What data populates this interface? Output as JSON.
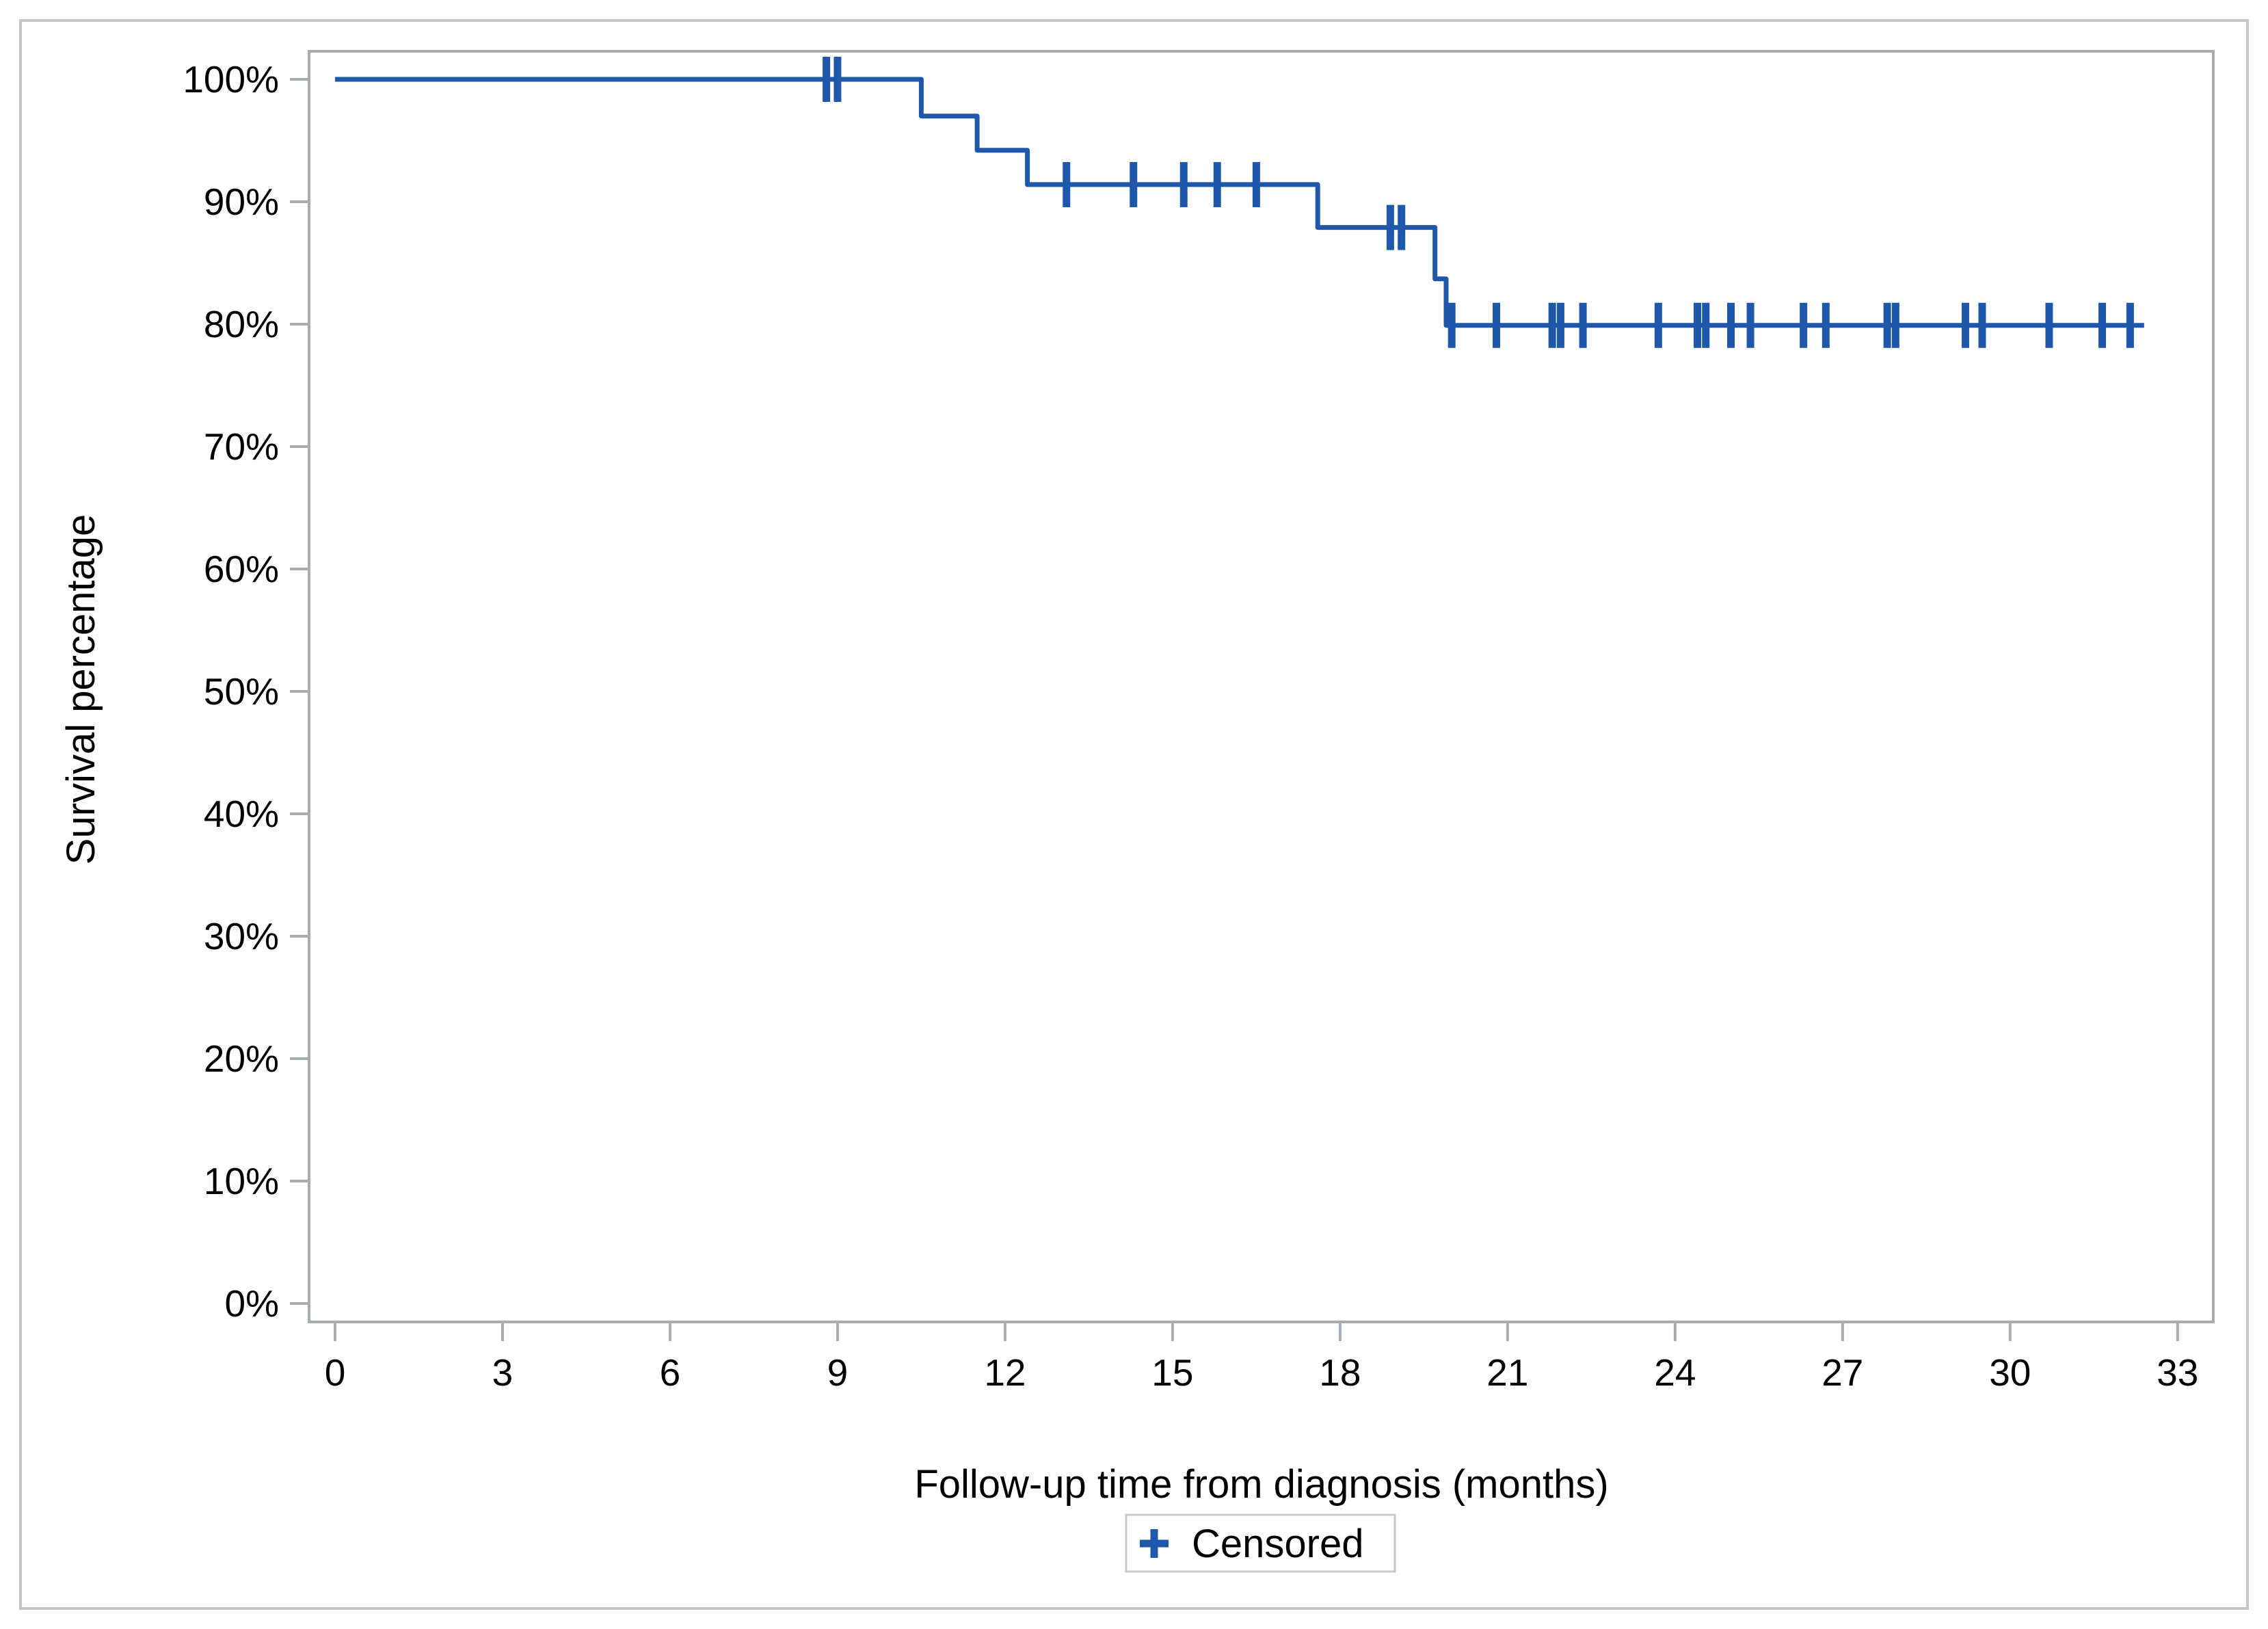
{
  "chart_data": {
    "type": "line",
    "subtype": "kaplan-meier-step-curve",
    "title": "",
    "xlabel": "Follow-up time from diagnosis (months)",
    "ylabel": "Survival percentage",
    "x_ticks": [
      0,
      3,
      6,
      9,
      12,
      15,
      18,
      21,
      24,
      27,
      30,
      33
    ],
    "y_ticks_percent": [
      100,
      90,
      80,
      70,
      60,
      50,
      40,
      30,
      20,
      10,
      0
    ],
    "y_tick_label_suffix": "%",
    "xlim": [
      -0.5,
      33.6
    ],
    "ylim": [
      -1.5,
      102.3
    ],
    "grid": false,
    "legend": {
      "label": "Censored",
      "marker": "plus-icon",
      "position": "bottom-center"
    },
    "series": [
      {
        "step_points": [
          [
            0,
            100
          ],
          [
            10.5,
            100
          ],
          [
            10.5,
            97.0
          ],
          [
            11.5,
            97.0
          ],
          [
            11.5,
            94.2
          ],
          [
            12.4,
            94.2
          ],
          [
            12.4,
            91.4
          ],
          [
            17.6,
            91.4
          ],
          [
            17.6,
            87.9
          ],
          [
            19.7,
            87.9
          ],
          [
            19.7,
            83.7
          ],
          [
            19.9,
            83.7
          ],
          [
            19.9,
            79.9
          ],
          [
            32.4,
            79.9
          ]
        ],
        "censored_points": [
          [
            8.8,
            100
          ],
          [
            9.0,
            100
          ],
          [
            13.1,
            91.4
          ],
          [
            14.3,
            91.4
          ],
          [
            15.2,
            91.4
          ],
          [
            15.8,
            91.4
          ],
          [
            16.5,
            91.4
          ],
          [
            18.9,
            87.9
          ],
          [
            19.1,
            87.9
          ],
          [
            20.0,
            79.9
          ],
          [
            20.8,
            79.9
          ],
          [
            21.8,
            79.9
          ],
          [
            21.95,
            79.9
          ],
          [
            22.35,
            79.9
          ],
          [
            23.7,
            79.9
          ],
          [
            24.4,
            79.9
          ],
          [
            24.55,
            79.9
          ],
          [
            25.0,
            79.9
          ],
          [
            25.35,
            79.9
          ],
          [
            26.3,
            79.9
          ],
          [
            26.7,
            79.9
          ],
          [
            27.8,
            79.9
          ],
          [
            27.95,
            79.9
          ],
          [
            29.2,
            79.9
          ],
          [
            29.5,
            79.9
          ],
          [
            30.7,
            79.9
          ],
          [
            31.65,
            79.9
          ],
          [
            32.15,
            79.9
          ]
        ]
      }
    ],
    "colors": {
      "curve": "#1f57ab",
      "axis": "#a6adb4",
      "text": "#000000",
      "figure_border": "#c6c6c6",
      "legend_border": "#c9c9c9",
      "background": "#ffffff"
    }
  }
}
